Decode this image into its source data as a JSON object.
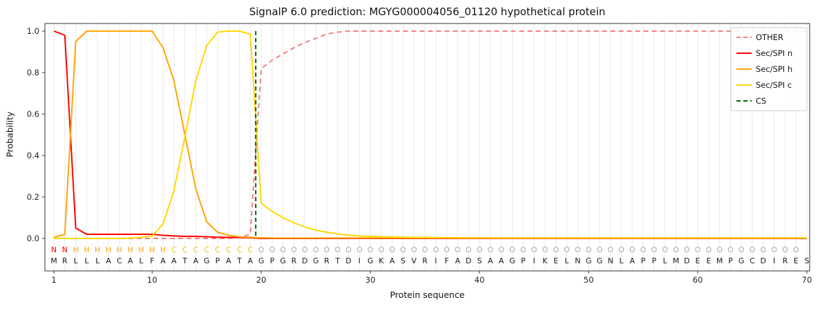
{
  "chart_data": {
    "type": "line",
    "title": "SignalP 6.0 prediction: MGYG000004056_01120 hypothetical protein",
    "xlabel": "Protein sequence",
    "ylabel": "Probability",
    "xticks": [
      1,
      10,
      20,
      30,
      40,
      50,
      60,
      70
    ],
    "yticks": [
      0.0,
      0.2,
      0.4,
      0.6,
      0.8,
      1.0
    ],
    "xlim": [
      0,
      71
    ],
    "ylim": [
      0.0,
      1.0
    ],
    "grid": "vertical-per-residue",
    "legend_position": "upper right",
    "sequence": "MRLLLACALFAATAGPATAGPGRDGRTDIGKASVRIFADSAAGPIKELNGGNLAPPLMDEEMPGCDIRES",
    "states": "NNHHHHHHHHHCCCCCCCCOOOOOOOOOOOOOOOOOOOOOOOOOOOOOOOOOOOOOOOOOOOOOOOOOO",
    "state_colors": {
      "N": "#ff0000",
      "H": "#ffa500",
      "C": "#f5c518",
      "O": "#aaaaaa"
    },
    "sequence_color": "#1a1a1a",
    "cs_position": 19.5,
    "series": [
      {
        "name": "OTHER",
        "color": "#f08080",
        "dash": true,
        "values": [
          0,
          0,
          0,
          0,
          0,
          0,
          0,
          0,
          0,
          0,
          0,
          0,
          0,
          0,
          0,
          0,
          0,
          0.005,
          0.02,
          0.82,
          0.86,
          0.89,
          0.92,
          0.945,
          0.965,
          0.985,
          0.995,
          1,
          1,
          1,
          1,
          1,
          1,
          1,
          1,
          1,
          1,
          1,
          1,
          1,
          1,
          1,
          1,
          1,
          1,
          1,
          1,
          1,
          1,
          1,
          1,
          1,
          1,
          1,
          1,
          1,
          1,
          1,
          1,
          1,
          1,
          1,
          1,
          1,
          1,
          1,
          1,
          1,
          1,
          1
        ]
      },
      {
        "name": "Sec/SPI n",
        "color": "#ff0000",
        "dash": false,
        "values": [
          1,
          0.98,
          0.05,
          0.02,
          0.02,
          0.02,
          0.02,
          0.02,
          0.02,
          0.02,
          0.015,
          0.012,
          0.01,
          0.01,
          0.008,
          0.006,
          0.005,
          0.004,
          0.003,
          0,
          0,
          0,
          0,
          0,
          0,
          0,
          0,
          0,
          0,
          0,
          0,
          0,
          0,
          0,
          0,
          0,
          0,
          0,
          0,
          0,
          0,
          0,
          0,
          0,
          0,
          0,
          0,
          0,
          0,
          0,
          0,
          0,
          0,
          0,
          0,
          0,
          0,
          0,
          0,
          0,
          0,
          0,
          0,
          0,
          0,
          0,
          0,
          0,
          0,
          0
        ]
      },
      {
        "name": "Sec/SPI h",
        "color": "#ffa500",
        "dash": false,
        "values": [
          0.005,
          0.02,
          0.95,
          1,
          1,
          1,
          1,
          1,
          1,
          1,
          0.92,
          0.76,
          0.5,
          0.24,
          0.08,
          0.03,
          0.015,
          0.008,
          0.005,
          0.003,
          0.002,
          0.002,
          0.002,
          0.002,
          0.002,
          0.002,
          0.002,
          0.002,
          0.002,
          0.002,
          0.002,
          0.002,
          0.002,
          0.002,
          0.002,
          0.002,
          0.002,
          0.002,
          0.002,
          0.002,
          0.002,
          0.002,
          0.002,
          0.002,
          0.002,
          0.002,
          0.002,
          0.002,
          0.002,
          0.002,
          0.002,
          0.002,
          0.002,
          0.002,
          0.002,
          0.002,
          0.002,
          0.002,
          0.002,
          0.002,
          0.002,
          0.002,
          0.002,
          0.002,
          0.002,
          0.002,
          0.002,
          0.002,
          0.002,
          0.002
        ]
      },
      {
        "name": "Sec/SPI c",
        "color": "#ffd700",
        "dash": false,
        "values": [
          0,
          0,
          0,
          0,
          0,
          0,
          0,
          0.002,
          0.005,
          0.012,
          0.07,
          0.23,
          0.49,
          0.76,
          0.93,
          0.995,
          1,
          1,
          0.985,
          0.17,
          0.13,
          0.1,
          0.075,
          0.055,
          0.04,
          0.03,
          0.022,
          0.016,
          0.012,
          0.01,
          0.008,
          0.007,
          0.006,
          0.005,
          0.005,
          0.004,
          0.004,
          0.003,
          0.003,
          0.003,
          0.002,
          0.002,
          0.002,
          0.002,
          0.002,
          0.002,
          0.002,
          0.002,
          0.002,
          0.002,
          0.002,
          0.002,
          0.002,
          0.002,
          0.002,
          0.002,
          0.002,
          0.002,
          0.002,
          0.002,
          0.002,
          0.002,
          0.002,
          0.002,
          0.002,
          0.002,
          0.002,
          0.002,
          0.002,
          0.002
        ]
      },
      {
        "name": "CS",
        "color": "#006400",
        "dash": true,
        "type": "vline",
        "x": 19.5
      }
    ]
  }
}
